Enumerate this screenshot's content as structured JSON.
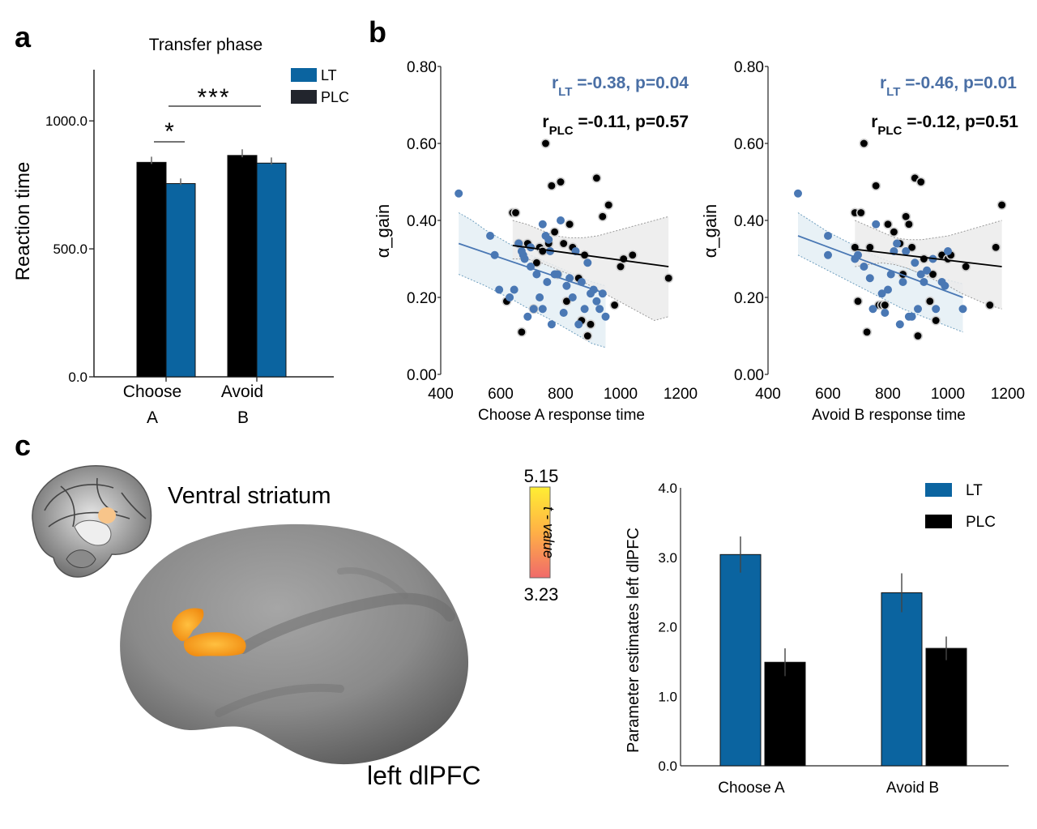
{
  "panel_labels": {
    "a": "a",
    "b": "b",
    "c": "c"
  },
  "colors": {
    "lt": "#0b64a0",
    "plc": "#000000",
    "lt_scatter": "#4a78b4",
    "plc_scatter": "#000000",
    "lt_text": "#4a6fa5"
  },
  "chart_data": [
    {
      "id": "panel-a",
      "type": "bar",
      "title": "Transfer phase",
      "xlabel": "",
      "ylabel": "Reaction time",
      "ylim": [
        0,
        1200
      ],
      "yticks": [
        0,
        500,
        1000
      ],
      "ytick_labels": [
        "0.0",
        "500.0",
        "1000.0"
      ],
      "categories": [
        [
          "Choose",
          "A"
        ],
        [
          "Avoid",
          "B"
        ]
      ],
      "series": [
        {
          "name": "PLC",
          "values": [
            838,
            865
          ],
          "errors": [
            22,
            24
          ]
        },
        {
          "name": "LT",
          "values": [
            755,
            835
          ],
          "errors": [
            20,
            22
          ]
        }
      ],
      "legend": [
        "LT",
        "PLC"
      ],
      "legend_position": "top-right",
      "significance": [
        {
          "label": "*",
          "between": "Choose A PLC vs LT"
        },
        {
          "label": "***",
          "between": "Choose A vs Avoid B"
        }
      ]
    },
    {
      "id": "panel-b1",
      "type": "scatter",
      "xlabel": "Choose A response time",
      "ylabel": "α_gain",
      "xlim": [
        400,
        1200
      ],
      "ylim": [
        0,
        0.8
      ],
      "xticks": [
        400,
        600,
        800,
        1000,
        1200
      ],
      "yticks": [
        0,
        0.2,
        0.4,
        0.6,
        0.8
      ],
      "ytick_labels": [
        "0.00",
        "0.20",
        "0.40",
        "0.60",
        "0.80"
      ],
      "annotations": {
        "lt": {
          "r": "r",
          "sub": "LT",
          "rest": " =-0.38, p=0.04"
        },
        "plc": {
          "r": "r",
          "sub": "PLC",
          "rest": " =-0.11, p=0.57"
        }
      },
      "series": [
        {
          "name": "LT",
          "x": [
            460,
            565,
            580,
            595,
            630,
            645,
            660,
            670,
            675,
            680,
            690,
            700,
            700,
            710,
            720,
            730,
            740,
            740,
            750,
            755,
            760,
            765,
            770,
            780,
            790,
            800,
            810,
            820,
            830,
            840,
            850,
            860,
            870,
            880,
            890,
            900,
            910,
            920,
            930,
            940,
            950
          ],
          "y": [
            0.47,
            0.36,
            0.31,
            0.22,
            0.2,
            0.22,
            0.34,
            0.32,
            0.31,
            0.3,
            0.15,
            0.33,
            0.28,
            0.17,
            0.26,
            0.2,
            0.39,
            0.17,
            0.36,
            0.24,
            0.35,
            0.32,
            0.13,
            0.26,
            0.26,
            0.4,
            0.16,
            0.23,
            0.25,
            0.2,
            0.32,
            0.13,
            0.24,
            0.17,
            0.29,
            0.21,
            0.22,
            0.19,
            0.17,
            0.21,
            0.15
          ],
          "fit": {
            "x": [
              460,
              950
            ],
            "y": [
              0.34,
              0.21
            ]
          },
          "ci_low": [
            0.26,
            0.245,
            0.23,
            0.212,
            0.195,
            0.175,
            0.158,
            0.14,
            0.12,
            0.1,
            0.08,
            0.07
          ],
          "ci_high": [
            0.42,
            0.4,
            0.375,
            0.355,
            0.335,
            0.315,
            0.3,
            0.285,
            0.27,
            0.255,
            0.24,
            0.23
          ]
        },
        {
          "name": "PLC",
          "x": [
            620,
            640,
            650,
            660,
            670,
            690,
            710,
            720,
            730,
            740,
            750,
            760,
            770,
            780,
            790,
            800,
            810,
            820,
            830,
            840,
            860,
            870,
            880,
            890,
            900,
            920,
            940,
            960,
            980,
            1000,
            1010,
            1040,
            1160
          ],
          "y": [
            0.19,
            0.42,
            0.42,
            0.34,
            0.11,
            0.34,
            0.17,
            0.29,
            0.33,
            0.32,
            0.6,
            0.34,
            0.49,
            0.37,
            0.26,
            0.5,
            0.34,
            0.19,
            0.39,
            0.33,
            0.25,
            0.14,
            0.31,
            0.1,
            0.13,
            0.51,
            0.41,
            0.44,
            0.18,
            0.28,
            0.3,
            0.31,
            0.25
          ],
          "fit": {
            "x": [
              640,
              1160
            ],
            "y": [
              0.335,
              0.28
            ]
          },
          "ci_low": [
            0.3,
            0.3,
            0.29,
            0.275,
            0.26,
            0.24,
            0.22,
            0.2,
            0.18,
            0.16,
            0.14,
            0.15
          ],
          "ci_high": [
            0.4,
            0.39,
            0.375,
            0.36,
            0.355,
            0.355,
            0.36,
            0.37,
            0.38,
            0.39,
            0.4,
            0.41
          ]
        }
      ]
    },
    {
      "id": "panel-b2",
      "type": "scatter",
      "xlabel": "Avoid B response time",
      "ylabel": "α_gain",
      "xlim": [
        400,
        1200
      ],
      "ylim": [
        0,
        0.8
      ],
      "xticks": [
        400,
        600,
        800,
        1000,
        1200
      ],
      "yticks": [
        0,
        0.2,
        0.4,
        0.6,
        0.8
      ],
      "ytick_labels": [
        "0.00",
        "0.20",
        "0.40",
        "0.60",
        "0.80"
      ],
      "annotations": {
        "lt": {
          "r": "r",
          "sub": "LT",
          "rest": " =-0.46, p=0.01"
        },
        "plc": {
          "r": "r",
          "sub": "PLC",
          "rest": " =-0.12, p=0.51"
        }
      },
      "series": [
        {
          "name": "LT",
          "x": [
            500,
            600,
            600,
            690,
            700,
            720,
            740,
            750,
            760,
            780,
            790,
            800,
            810,
            820,
            830,
            840,
            850,
            860,
            870,
            880,
            890,
            900,
            910,
            920,
            930,
            950,
            960,
            980,
            990,
            1000,
            1050
          ],
          "y": [
            0.47,
            0.36,
            0.31,
            0.3,
            0.31,
            0.28,
            0.25,
            0.17,
            0.39,
            0.21,
            0.16,
            0.22,
            0.26,
            0.32,
            0.34,
            0.13,
            0.24,
            0.32,
            0.15,
            0.15,
            0.29,
            0.17,
            0.26,
            0.24,
            0.27,
            0.3,
            0.17,
            0.24,
            0.23,
            0.32,
            0.17
          ],
          "fit": {
            "x": [
              500,
              1050
            ],
            "y": [
              0.36,
              0.2
            ]
          },
          "ci_low": [
            0.31,
            0.29,
            0.27,
            0.25,
            0.23,
            0.21,
            0.19,
            0.17,
            0.155,
            0.14,
            0.125,
            0.11
          ],
          "ci_high": [
            0.42,
            0.395,
            0.37,
            0.35,
            0.33,
            0.31,
            0.295,
            0.28,
            0.265,
            0.255,
            0.245,
            0.235
          ]
        },
        {
          "name": "PLC",
          "x": [
            690,
            690,
            700,
            710,
            720,
            730,
            740,
            760,
            770,
            780,
            790,
            800,
            820,
            840,
            850,
            860,
            870,
            880,
            890,
            900,
            910,
            920,
            940,
            950,
            960,
            980,
            1000,
            1010,
            1060,
            1140,
            1160,
            1180
          ],
          "y": [
            0.42,
            0.33,
            0.19,
            0.42,
            0.6,
            0.11,
            0.33,
            0.49,
            0.18,
            0.18,
            0.18,
            0.39,
            0.37,
            0.34,
            0.26,
            0.41,
            0.39,
            0.33,
            0.51,
            0.1,
            0.5,
            0.3,
            0.19,
            0.26,
            0.14,
            0.31,
            0.3,
            0.31,
            0.28,
            0.18,
            0.33,
            0.44
          ],
          "fit": {
            "x": [
              690,
              1180
            ],
            "y": [
              0.325,
              0.28
            ]
          },
          "ci_low": [
            0.28,
            0.285,
            0.29,
            0.285,
            0.275,
            0.26,
            0.245,
            0.23,
            0.21,
            0.195,
            0.18,
            0.17
          ],
          "ci_high": [
            0.4,
            0.385,
            0.37,
            0.355,
            0.35,
            0.35,
            0.355,
            0.36,
            0.37,
            0.38,
            0.39,
            0.4
          ]
        }
      ]
    },
    {
      "id": "panel-c-bar",
      "type": "bar",
      "xlabel": "",
      "ylabel": "Parameter estimates left dlPFC",
      "ylim": [
        0,
        4.0
      ],
      "yticks": [
        0,
        1,
        2,
        3,
        4
      ],
      "ytick_labels": [
        "0.0",
        "1.0",
        "2.0",
        "3.0",
        "4.0"
      ],
      "categories": [
        "Choose A",
        "Avoid B"
      ],
      "series": [
        {
          "name": "LT",
          "values": [
            3.04,
            2.49
          ],
          "errors": [
            0.26,
            0.28
          ]
        },
        {
          "name": "PLC",
          "values": [
            1.49,
            1.69
          ],
          "errors": [
            0.2,
            0.17
          ]
        }
      ],
      "legend": [
        "LT",
        "PLC"
      ],
      "legend_position": "top-right"
    }
  ],
  "brain": {
    "title": "Ventral striatum",
    "region_label": "left dlPFC",
    "colorbar": {
      "max": "5.15",
      "min": "3.23",
      "label": "t - value"
    }
  }
}
